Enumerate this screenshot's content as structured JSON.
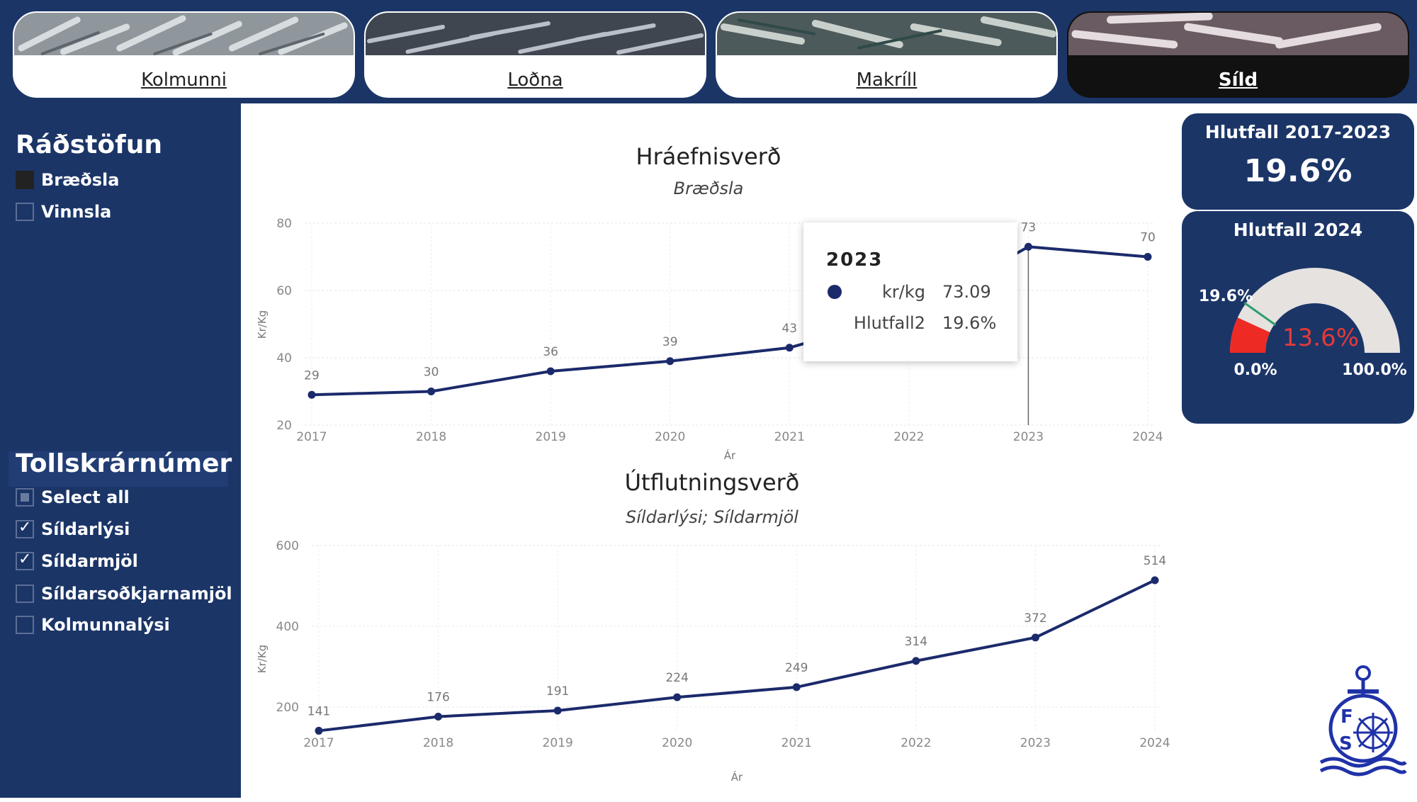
{
  "nav": {
    "tabs": [
      {
        "label": "Kolmunni",
        "active": false
      },
      {
        "label": "Loðna",
        "active": false
      },
      {
        "label": "Makríll",
        "active": false
      },
      {
        "label": "Síld",
        "active": true
      }
    ]
  },
  "filters": {
    "radstofun": {
      "title": "Ráðstöfun",
      "options": [
        {
          "label": "Bræðsla",
          "state": "selected"
        },
        {
          "label": "Vinnsla",
          "state": "unchecked"
        }
      ]
    },
    "tollskra": {
      "title": "Tollskrárnúmer",
      "options": [
        {
          "label": "Select all",
          "state": "partial"
        },
        {
          "label": "Síldarlýsi",
          "state": "checked"
        },
        {
          "label": "Síldarmjöl",
          "state": "checked"
        },
        {
          "label": "Síldarsoðkjarnamjöl",
          "state": "unchecked"
        },
        {
          "label": "Kolmunnalýsi",
          "state": "unchecked"
        }
      ]
    }
  },
  "kpi": {
    "card1": {
      "title": "Hlutfall 2017-2023",
      "value": "19.6%"
    },
    "card2": {
      "title": "Hlutfall 2024",
      "value": "13.6%",
      "value_fraction": 0.136,
      "target_label": "19.6%",
      "target_fraction": 0.196,
      "min_label": "0.0%",
      "max_label": "100.0%",
      "fill_color": "#ee2a24",
      "target_color": "#2e9e6c",
      "value_color": "#e23a3a"
    }
  },
  "tooltip": {
    "year": "2023",
    "rows": [
      {
        "key": "kr/kg",
        "value": "73.09"
      },
      {
        "key": "Hlutfall2",
        "value": "19.6%"
      }
    ]
  },
  "chart_data": [
    {
      "type": "line",
      "title": "Hráefnisverð",
      "subtitle": "Bræðsla",
      "xlabel": "Ár",
      "ylabel": "Kr/Kg",
      "x": [
        "2017",
        "2018",
        "2019",
        "2020",
        "2021",
        "2022",
        "2023",
        "2024"
      ],
      "values": [
        29,
        30,
        36,
        39,
        43,
        53,
        73,
        70
      ],
      "data_labels": [
        "29",
        "30",
        "36",
        "39",
        "43",
        "",
        "73",
        "70"
      ],
      "yticks": [
        "20",
        "40",
        "60",
        "80"
      ],
      "ylim": [
        20,
        80
      ],
      "grid": true,
      "highlight_x": "2023",
      "line_color": "#1b2a6b"
    },
    {
      "type": "line",
      "title": "Útflutningsverð",
      "subtitle": "Síldarlýsi; Síldarmjöl",
      "xlabel": "Ár",
      "ylabel": "Kr/Kg",
      "x": [
        "2017",
        "2018",
        "2019",
        "2020",
        "2021",
        "2022",
        "2023",
        "2024"
      ],
      "values": [
        141,
        176,
        191,
        224,
        249,
        314,
        372,
        514
      ],
      "data_labels": [
        "141",
        "176",
        "191",
        "224",
        "249",
        "314",
        "372",
        "514"
      ],
      "yticks": [
        "200",
        "400",
        "600"
      ],
      "ylim": [
        140,
        600
      ],
      "grid": true,
      "line_color": "#1b2a6b"
    }
  ]
}
